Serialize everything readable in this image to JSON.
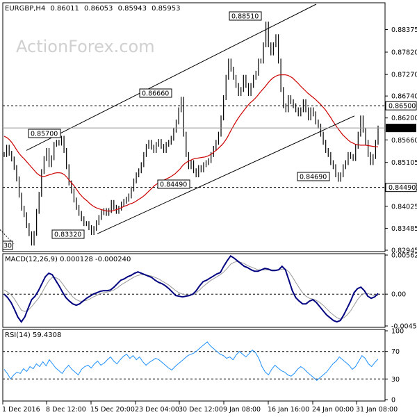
{
  "header": {
    "symbol": "EURGBP",
    "timeframe": "H4",
    "ohlc": [
      "0.86011",
      "0.86053",
      "0.85943",
      "0.85953"
    ]
  },
  "watermark": "ActionForex.com",
  "colors": {
    "price": "#000000",
    "sma": "#cc0000",
    "macd": "#000080",
    "signal": "#999999",
    "rsi": "#1e90ff",
    "last_price_box": "#000000",
    "dashed": "#000000"
  },
  "chart_data": [
    {
      "type": "line",
      "name": "price",
      "title": "EURGBP,H4 0.86011 0.86053 0.85943 0.85953",
      "ylim": [
        0.82945,
        0.89
      ],
      "y_ticks": [
        "0.88375",
        "0.87820",
        "0.87270",
        "0.86740",
        "0.86200",
        "0.85660",
        "0.85105",
        "0.84490",
        "0.84025",
        "0.83485",
        "0.82945"
      ],
      "x_ticks": [
        "1 Dec 2016",
        "8 Dec 12:00",
        "15 Dec 20:00",
        "23 Dec 04:00",
        "30 Dec 12:00",
        "9 Jan 08:00",
        "16 Jan 16:00",
        "24 Jan 00:00",
        "31 Jan 08:00"
      ],
      "price": [
        0.853,
        0.8548,
        0.8533,
        0.8519,
        0.8498,
        0.847,
        0.843,
        0.8398,
        0.8382,
        0.8355,
        0.8335,
        0.8312,
        0.8336,
        0.839,
        0.8432,
        0.8488,
        0.852,
        0.854,
        0.8505,
        0.8522,
        0.8555,
        0.856,
        0.8558,
        0.857,
        0.854,
        0.85,
        0.846,
        0.844,
        0.8418,
        0.84,
        0.8385,
        0.8372,
        0.836,
        0.836,
        0.835,
        0.8338,
        0.8348,
        0.8362,
        0.8375,
        0.8387,
        0.8392,
        0.8385,
        0.8392,
        0.8412,
        0.84,
        0.839,
        0.8398,
        0.8408,
        0.8415,
        0.842,
        0.8428,
        0.8445,
        0.8465,
        0.848,
        0.849,
        0.8505,
        0.853,
        0.855,
        0.856,
        0.8548,
        0.854,
        0.8555,
        0.8562,
        0.855,
        0.854,
        0.8555,
        0.856,
        0.857,
        0.859,
        0.861,
        0.864,
        0.8666,
        0.858,
        0.853,
        0.85,
        0.851,
        0.849,
        0.848,
        0.8498,
        0.8492,
        0.8505,
        0.851,
        0.8515,
        0.853,
        0.8545,
        0.856,
        0.858,
        0.862,
        0.867,
        0.872,
        0.876,
        0.874,
        0.872,
        0.87,
        0.868,
        0.869,
        0.872,
        0.87,
        0.868,
        0.87,
        0.872,
        0.873,
        0.876,
        0.876,
        0.88,
        0.8851,
        0.88,
        0.878,
        0.88,
        0.882,
        0.876,
        0.869,
        0.865,
        0.864,
        0.867,
        0.866,
        0.865,
        0.864,
        0.863,
        0.864,
        0.866,
        0.864,
        0.862,
        0.864,
        0.863,
        0.861,
        0.86,
        0.858,
        0.856,
        0.854,
        0.853,
        0.851,
        0.85,
        0.848,
        0.8469,
        0.848,
        0.85,
        0.851,
        0.853,
        0.8525,
        0.852,
        0.855,
        0.858,
        0.862,
        0.859,
        0.856,
        0.853,
        0.851,
        0.8525,
        0.856,
        0.8595
      ],
      "sma": [
        0.8575,
        0.8572,
        0.8567,
        0.856,
        0.8551,
        0.8541,
        0.8532,
        0.8525,
        0.8519,
        0.8512,
        0.8505,
        0.8498,
        0.8491,
        0.8484,
        0.8479,
        0.8476,
        0.8476,
        0.8478,
        0.848,
        0.8482,
        0.8484,
        0.8485,
        0.8485,
        0.8484,
        0.848,
        0.8474,
        0.8466,
        0.8459,
        0.8452,
        0.8443,
        0.8434,
        0.8427,
        0.8421,
        0.8416,
        0.841,
        0.8405,
        0.8401,
        0.8398,
        0.8396,
        0.8394,
        0.8392,
        0.8391,
        0.8391,
        0.8391,
        0.8393,
        0.8395,
        0.8397,
        0.84,
        0.8403,
        0.8405,
        0.8408,
        0.841,
        0.8413,
        0.8417,
        0.8421,
        0.8425,
        0.843,
        0.8436,
        0.8442,
        0.8448,
        0.8454,
        0.8458,
        0.8462,
        0.8465,
        0.8468,
        0.8471,
        0.8474,
        0.8478,
        0.8482,
        0.8488,
        0.8494,
        0.8502,
        0.8508,
        0.8512,
        0.8515,
        0.8518,
        0.852,
        0.8521,
        0.8522,
        0.8523,
        0.8524,
        0.8526,
        0.8529,
        0.8533,
        0.8538,
        0.8543,
        0.8549,
        0.8555,
        0.8563,
        0.8573,
        0.8585,
        0.8596,
        0.8607,
        0.8617,
        0.8626,
        0.8634,
        0.8642,
        0.865,
        0.8657,
        0.8662,
        0.8668,
        0.8675,
        0.8683,
        0.869,
        0.8697,
        0.8705,
        0.8712,
        0.8718,
        0.8722,
        0.8725,
        0.8726,
        0.8726,
        0.8726,
        0.8725,
        0.8722,
        0.8718,
        0.8712,
        0.8706,
        0.8699,
        0.8693,
        0.8687,
        0.8681,
        0.8676,
        0.8671,
        0.8666,
        0.866,
        0.8654,
        0.8647,
        0.864,
        0.8631,
        0.8622,
        0.8612,
        0.8603,
        0.8594,
        0.8586,
        0.8578,
        0.8572,
        0.8566,
        0.8561,
        0.8558,
        0.8555,
        0.8554,
        0.8553,
        0.8553,
        0.8553,
        0.8552,
        0.8551,
        0.855,
        0.8549,
        0.8549
      ]
    },
    {
      "type": "line",
      "name": "macd",
      "title": "MACD(12,26,9) 0.000128 -0.000240",
      "ylim": [
        -0.004586,
        0.005627
      ],
      "y_ticks": [
        "0.005627",
        "0.00",
        "-0.004586"
      ],
      "macd": [
        0.0,
        -0.0005,
        -0.0012,
        -0.0022,
        -0.0033,
        -0.004,
        -0.0033,
        -0.002,
        -0.0008,
        -0.0003,
        0.0005,
        0.0015,
        0.0025,
        0.003,
        0.0028,
        0.002,
        0.0012,
        0.0003,
        -0.0005,
        -0.001,
        -0.0014,
        -0.0016,
        -0.0014,
        -0.001,
        -0.0006,
        -0.0003,
        0.0,
        0.0002,
        0.0004,
        0.0005,
        0.0005,
        0.0006,
        0.001,
        0.0015,
        0.002,
        0.0022,
        0.0025,
        0.0027,
        0.003,
        0.0032,
        0.003,
        0.0028,
        0.0026,
        0.0024,
        0.002,
        0.0017,
        0.0015,
        0.0012,
        0.0008,
        0.0003,
        -0.0002,
        -0.0003,
        -0.0004,
        -0.0003,
        -0.0002,
        0.0,
        0.0005,
        0.0012,
        0.0018,
        0.002,
        0.0023,
        0.0026,
        0.0029,
        0.0031,
        0.004,
        0.0048,
        0.0055,
        0.0052,
        0.0048,
        0.0044,
        0.004,
        0.0038,
        0.0035,
        0.0033,
        0.0033,
        0.0035,
        0.0037,
        0.0036,
        0.0034,
        0.0034,
        0.0035,
        0.004,
        0.0035,
        0.002,
        0.0005,
        -0.0005,
        -0.001,
        -0.0014,
        -0.0014,
        -0.001,
        -0.0008,
        -0.0012,
        -0.0018,
        -0.0024,
        -0.003,
        -0.0034,
        -0.0038,
        -0.004,
        -0.0038,
        -0.003,
        -0.002,
        -0.001,
        0.0002,
        0.0008,
        0.001,
        0.0005,
        -0.0003,
        -0.0006,
        -0.0004,
        0.0001
      ],
      "signal": [
        0.0006,
        0.0003,
        -0.0001,
        -0.0007,
        -0.0015,
        -0.0023,
        -0.0025,
        -0.0023,
        -0.0018,
        -0.0012,
        -0.0006,
        0.0002,
        0.0011,
        0.0019,
        0.0024,
        0.0024,
        0.0021,
        0.0015,
        0.0008,
        0.0002,
        -0.0004,
        -0.0008,
        -0.001,
        -0.001,
        -0.0009,
        -0.0007,
        -0.0004,
        -0.0002,
        0.0001,
        0.0002,
        0.0003,
        0.0004,
        0.0006,
        0.0009,
        0.0013,
        0.0016,
        0.0019,
        0.0022,
        0.0025,
        0.0027,
        0.0028,
        0.0028,
        0.0027,
        0.0026,
        0.0024,
        0.0022,
        0.0019,
        0.0016,
        0.0013,
        0.0009,
        0.0005,
        0.0002,
        -0.0,
        -0.0001,
        -0.0002,
        -0.0001,
        0.0002,
        0.0006,
        0.0011,
        0.0015,
        0.0019,
        0.0022,
        0.0025,
        0.0028,
        0.0032,
        0.0037,
        0.0043,
        0.0046,
        0.0047,
        0.0046,
        0.0044,
        0.0041,
        0.0039,
        0.0037,
        0.0035,
        0.0035,
        0.0035,
        0.0035,
        0.0035,
        0.0035,
        0.0035,
        0.0036,
        0.0036,
        0.0032,
        0.0025,
        0.0017,
        0.0009,
        0.0002,
        -0.0003,
        -0.0006,
        -0.0007,
        -0.0009,
        -0.0012,
        -0.0016,
        -0.0021,
        -0.0026,
        -0.003,
        -0.0034,
        -0.0036,
        -0.0034,
        -0.003,
        -0.0024,
        -0.0016,
        -0.0008,
        -0.0002,
        0.0001,
        0.0001,
        -0.0001,
        -0.0002,
        -0.0002
      ]
    },
    {
      "type": "line",
      "name": "rsi",
      "title": "RSI(14) 59.4308",
      "ylim": [
        0,
        100
      ],
      "y_ticks": [
        "100",
        "70",
        "30",
        "0"
      ],
      "levels": [
        70,
        30
      ],
      "values": [
        44,
        38,
        30,
        36,
        40,
        38,
        45,
        41,
        48,
        45,
        52,
        48,
        55,
        49,
        58,
        52,
        46,
        42,
        38,
        45,
        50,
        44,
        40,
        36,
        44,
        48,
        50,
        46,
        52,
        56,
        50,
        53,
        58,
        62,
        56,
        52,
        58,
        63,
        66,
        60,
        64,
        58,
        62,
        55,
        50,
        54,
        57,
        60,
        58,
        54,
        50,
        46,
        43,
        48,
        52,
        56,
        60,
        64,
        66,
        68,
        72,
        76,
        80,
        84,
        78,
        74,
        70,
        66,
        64,
        60,
        62,
        58,
        65,
        70,
        66,
        62,
        67,
        72,
        68,
        60,
        48,
        40,
        36,
        44,
        50,
        46,
        42,
        40,
        36,
        34,
        38,
        44,
        48,
        45,
        40,
        36,
        32,
        28,
        32,
        36,
        40,
        46,
        52,
        56,
        62,
        58,
        54,
        50,
        44,
        48,
        56,
        64,
        60,
        52,
        48,
        54,
        59
      ]
    }
  ],
  "annotations": {
    "peak_labels": [
      "0.88510",
      "0.86660",
      "0.85700",
      "0.83320",
      "0.84490",
      "0.84690"
    ],
    "partial_label": "30",
    "dashed_levels": [
      "0.86500",
      "0.84490"
    ],
    "last_price": "0.85953"
  }
}
